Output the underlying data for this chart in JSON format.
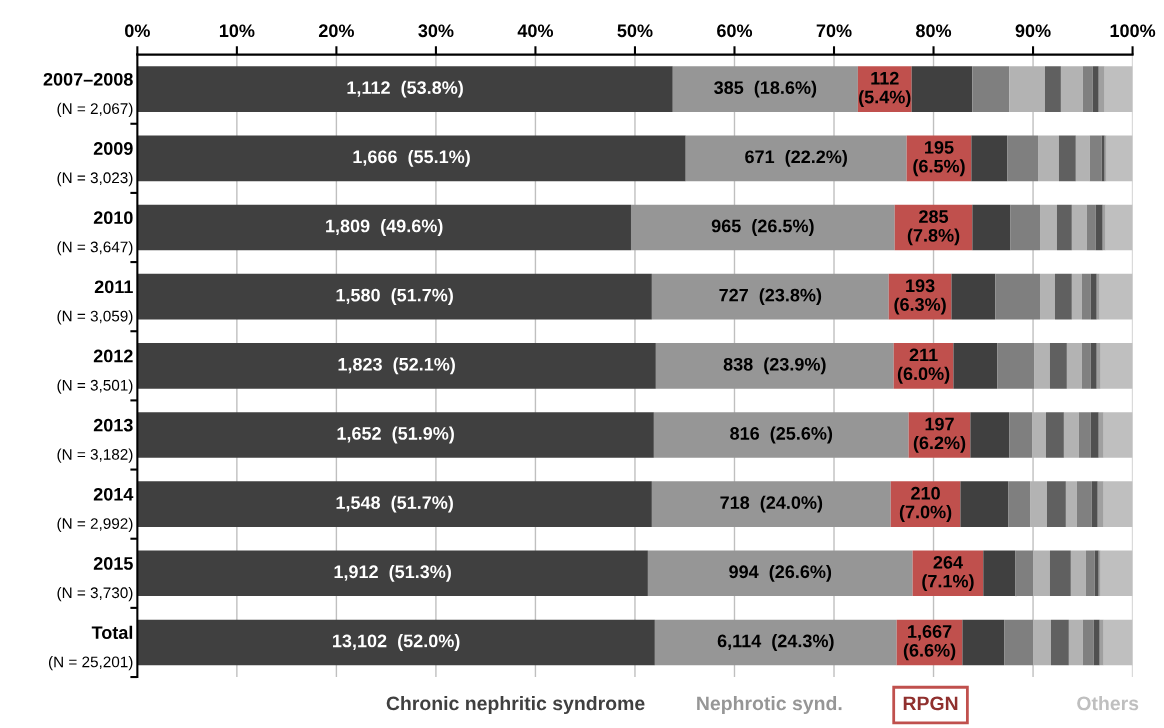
{
  "chart_data": {
    "type": "bar",
    "orientation": "horizontal",
    "stacked": true,
    "categories": [
      "2007–2008\n(N = 2,067)",
      "2009\n(N = 3,023)",
      "2010\n(N = 3,647)",
      "2011\n(N = 3,059)",
      "2012\n(N = 3,501)",
      "2013\n(N = 3,182)",
      "2014\n(N = 2,992)",
      "2015\n(N = 3,730)",
      "Total\n(N = 25,201)"
    ],
    "series": [
      {
        "name": "Chronic nephritic syndrome",
        "color": "#404040",
        "values": [
          53.8,
          55.1,
          49.6,
          51.7,
          52.1,
          51.9,
          51.7,
          51.3,
          52.0
        ],
        "value_labels": [
          "1,112  (53.8%)",
          "1,666  (55.1%)",
          "1,809  (49.6%)",
          "1,580  (51.7%)",
          "1,823  (52.1%)",
          "1,652  (51.9%)",
          "1,548  (51.7%)",
          "1,912  (51.3%)",
          "13,102  (52.0%)"
        ]
      },
      {
        "name": "Nephrotic synd.",
        "color": "#969696",
        "values": [
          18.6,
          22.2,
          26.5,
          23.8,
          23.9,
          25.6,
          24.0,
          26.6,
          24.3
        ],
        "value_labels": [
          "385  (18.6%)",
          "671  (22.2%)",
          "965  (26.5%)",
          "727  (23.8%)",
          "838  (23.9%)",
          "816  (25.6%)",
          "718  (24.0%)",
          "994  (26.6%)",
          "6,114  (24.3%)"
        ]
      },
      {
        "name": "RPGN",
        "color": "#c0504d",
        "values": [
          5.4,
          6.5,
          7.8,
          6.3,
          6.0,
          6.2,
          7.0,
          7.1,
          6.6
        ],
        "value_labels": [
          "112\n(5.4%)",
          "195\n(6.5%)",
          "285\n(7.8%)",
          "193\n(6.3%)",
          "211\n(6.0%)",
          "197\n(6.2%)",
          "210\n(7.0%)",
          "264\n(7.1%)",
          "1,667\n(6.6%)"
        ]
      },
      {
        "color": "#404040",
        "values": [
          6.1,
          3.6,
          3.8,
          4.4,
          4.4,
          3.9,
          4.8,
          3.2,
          4.2
        ]
      },
      {
        "color": "#7f7f7f",
        "values": [
          3.7,
          3.1,
          3.0,
          4.5,
          3.7,
          2.3,
          2.2,
          1.8,
          2.9
        ]
      },
      {
        "color": "#b3b3b3",
        "values": [
          3.6,
          2.1,
          1.7,
          1.5,
          1.6,
          1.4,
          1.7,
          1.7,
          1.8
        ]
      },
      {
        "color": "#606060",
        "values": [
          1.6,
          1.7,
          1.5,
          1.7,
          1.7,
          1.8,
          1.9,
          2.1,
          1.8
        ]
      },
      {
        "color": "#b3b3b3",
        "values": [
          2.2,
          1.4,
          1.5,
          1.0,
          1.5,
          1.5,
          1.1,
          1.5,
          1.4
        ]
      },
      {
        "color": "#808080",
        "values": [
          1.0,
          1.2,
          0.9,
          0.9,
          0.9,
          1.2,
          1.5,
          0.9,
          1.1
        ]
      },
      {
        "color": "#505050",
        "values": [
          0.6,
          0.3,
          0.7,
          0.6,
          0.6,
          0.8,
          0.6,
          0.4,
          0.6
        ]
      },
      {
        "color": "#a0a0a0",
        "values": [
          0.6,
          0.2,
          0.3,
          0.3,
          0.4,
          0.5,
          0.6,
          0.2,
          0.4
        ]
      },
      {
        "name": "Others",
        "color": "#bfbfbf",
        "values": [
          2.8,
          2.6,
          2.7,
          3.3,
          3.2,
          2.9,
          2.9,
          3.2,
          2.9
        ]
      }
    ],
    "xlim": [
      0,
      100
    ],
    "xticks": [
      {
        "value": 0,
        "label": "0%"
      },
      {
        "value": 10,
        "label": "10%"
      },
      {
        "value": 20,
        "label": "20%"
      },
      {
        "value": 30,
        "label": "30%"
      },
      {
        "value": 40,
        "label": "40%"
      },
      {
        "value": 50,
        "label": "50%"
      },
      {
        "value": 60,
        "label": "60%"
      },
      {
        "value": 70,
        "label": "70%"
      },
      {
        "value": 80,
        "label": "80%"
      },
      {
        "value": 90,
        "label": "90%"
      },
      {
        "value": 100,
        "label": "100%"
      }
    ],
    "grid": "x",
    "legend": "bottom"
  }
}
